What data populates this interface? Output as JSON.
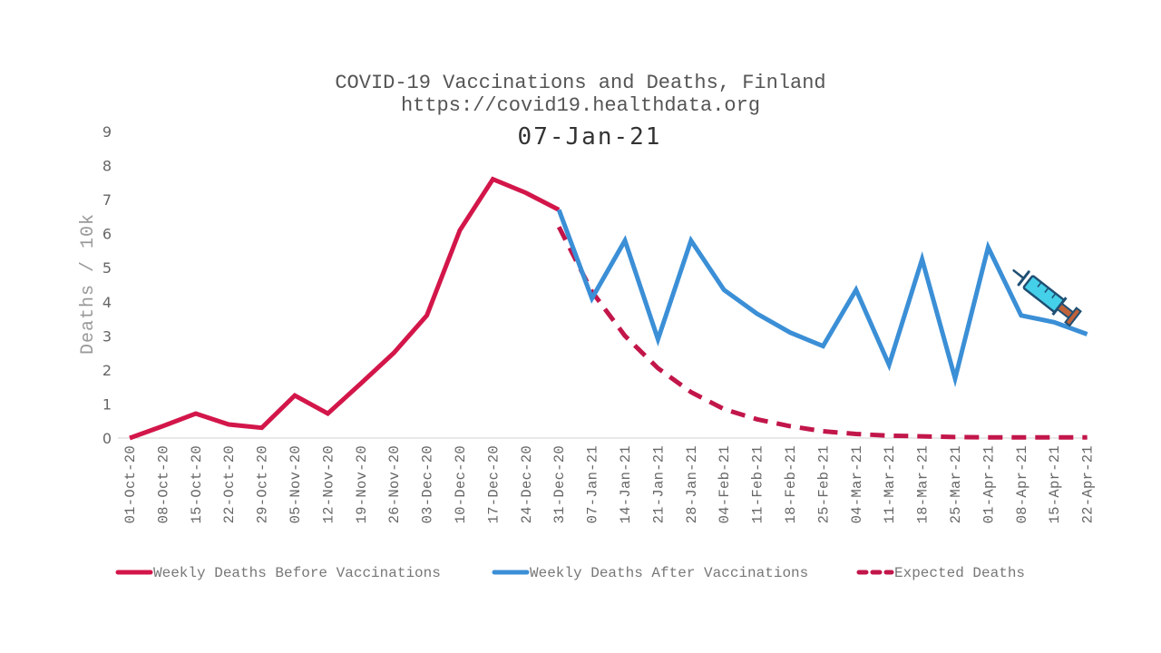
{
  "chart_data": {
    "type": "line",
    "title": "COVID-19 Vaccinations and Deaths, Finland",
    "subtitle": "https://covid19.healthdata.org",
    "date_label": "07-Jan-21",
    "xlabel": "",
    "ylabel": "Deaths / 10k",
    "ylim": [
      0,
      9
    ],
    "yticks": [
      "0",
      "1",
      "2",
      "3",
      "4",
      "5",
      "6",
      "7",
      "8",
      "9"
    ],
    "categories": [
      "01-Oct-20",
      "08-Oct-20",
      "15-Oct-20",
      "22-Oct-20",
      "29-Oct-20",
      "05-Nov-20",
      "12-Nov-20",
      "19-Nov-20",
      "26-Nov-20",
      "03-Dec-20",
      "10-Dec-20",
      "17-Dec-20",
      "24-Dec-20",
      "31-Dec-20",
      "07-Jan-21",
      "14-Jan-21",
      "21-Jan-21",
      "28-Jan-21",
      "04-Feb-21",
      "11-Feb-21",
      "18-Feb-21",
      "25-Feb-21",
      "04-Mar-21",
      "11-Mar-21",
      "18-Mar-21",
      "25-Mar-21",
      "01-Apr-21",
      "08-Apr-21",
      "15-Apr-21",
      "22-Apr-21"
    ],
    "series": [
      {
        "name": "Weekly Deaths Before Vaccinations",
        "color": "#d3164a",
        "style": "solid",
        "values": [
          0.0,
          0.35,
          0.72,
          0.4,
          0.3,
          1.25,
          0.72,
          1.6,
          2.5,
          3.6,
          6.1,
          7.6,
          7.2,
          6.7,
          null,
          null,
          null,
          null,
          null,
          null,
          null,
          null,
          null,
          null,
          null,
          null,
          null,
          null,
          null,
          null
        ]
      },
      {
        "name": "Weekly Deaths After Vaccinations",
        "color": "#3b8fd6",
        "style": "solid",
        "values": [
          null,
          null,
          null,
          null,
          null,
          null,
          null,
          null,
          null,
          null,
          null,
          null,
          null,
          6.7,
          4.1,
          5.8,
          2.9,
          5.8,
          4.35,
          3.65,
          3.1,
          2.7,
          4.35,
          2.15,
          5.25,
          1.75,
          5.6,
          3.6,
          3.4,
          3.05
        ]
      },
      {
        "name": "Expected Deaths",
        "color": "#c2164a",
        "style": "dashed",
        "values": [
          null,
          null,
          null,
          null,
          null,
          null,
          null,
          null,
          null,
          null,
          null,
          null,
          null,
          6.2,
          4.3,
          3.0,
          2.05,
          1.35,
          0.85,
          0.55,
          0.35,
          0.2,
          0.12,
          0.07,
          0.05,
          0.03,
          0.02,
          0.02,
          0.02,
          0.02
        ]
      }
    ],
    "legend": [
      "Weekly Deaths Before Vaccinations",
      "Weekly Deaths After Vaccinations",
      "Expected Deaths"
    ],
    "legend_position": "bottom",
    "grid": false
  },
  "icons": {
    "marker": "syringe-icon"
  },
  "colors": {
    "needle_fill": "#45d0ea",
    "needle_stroke": "#1f4f73",
    "plunger": "#c0623a"
  }
}
